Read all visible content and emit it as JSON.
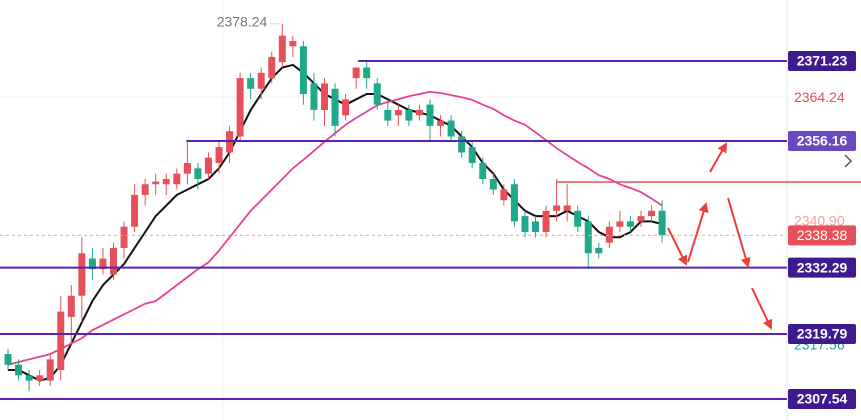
{
  "chart_data": {
    "type": "candlestick",
    "up_color": "#e5505a",
    "down_color": "#1fa88a",
    "open": [
      2316,
      2314,
      2312,
      2311,
      2311,
      2313,
      2323,
      2327,
      2334,
      2332,
      2331,
      2336,
      2340,
      2346,
      2348,
      2348,
      2348,
      2350,
      2351,
      2350,
      2352,
      2354,
      2357,
      2368,
      2366,
      2368,
      2371,
      2374,
      2374,
      2367,
      2362,
      2366,
      2361,
      2368,
      2370,
      2367,
      2362,
      2361,
      2362,
      2361,
      2363,
      2359,
      2360,
      2357,
      2355,
      2352,
      2349,
      2345,
      2348,
      2342,
      2341,
      2339,
      2343,
      2343,
      2343,
      2341,
      2336,
      2337,
      2340,
      2341,
      2341,
      2342,
      2343
    ],
    "high": [
      2317,
      2315,
      2313,
      2313,
      2316,
      2327,
      2329,
      2338,
      2336,
      2336,
      2337,
      2341,
      2348,
      2349,
      2350,
      2350,
      2351,
      2356,
      2352,
      2354,
      2356,
      2359,
      2369,
      2369,
      2370,
      2373,
      2378.24,
      2376,
      2375,
      2369,
      2368,
      2367,
      2365,
      2370,
      2371,
      2368,
      2364,
      2363,
      2363,
      2363,
      2364,
      2361,
      2361,
      2358,
      2356,
      2353,
      2350,
      2348,
      2349,
      2343,
      2342,
      2344,
      2349,
      2348,
      2344,
      2342,
      2337,
      2341,
      2343,
      2342,
      2343,
      2344,
      2345
    ],
    "low": [
      2313,
      2311,
      2309,
      2310,
      2310,
      2311,
      2318,
      2322,
      2330,
      2331,
      2330,
      2334,
      2339,
      2344,
      2346,
      2346,
      2347,
      2348,
      2347,
      2349,
      2350,
      2352,
      2356,
      2364,
      2364,
      2367,
      2370,
      2372,
      2363,
      2360,
      2359,
      2357,
      2360,
      2366,
      2366,
      2362,
      2359,
      2359,
      2359,
      2360,
      2356,
      2357,
      2356,
      2353,
      2351,
      2348,
      2346,
      2344,
      2340,
      2338,
      2338,
      2338,
      2341,
      2341,
      2339,
      2332,
      2334,
      2336,
      2339,
      2339,
      2340,
      2341,
      2337
    ],
    "close": [
      2314,
      2312,
      2311,
      2312,
      2315,
      2324,
      2327,
      2335,
      2332,
      2334,
      2336,
      2340,
      2346,
      2348,
      2348.5,
      2349,
      2350,
      2352,
      2349,
      2353,
      2355,
      2358,
      2368,
      2366,
      2369,
      2372,
      2376,
      2375,
      2365,
      2362,
      2367,
      2359,
      2364,
      2370,
      2368,
      2363,
      2360,
      2362,
      2360,
      2362,
      2359,
      2360,
      2357,
      2354,
      2352,
      2349,
      2347,
      2347,
      2341,
      2339,
      2339,
      2343,
      2344,
      2344,
      2340,
      2335,
      2335,
      2340,
      2341,
      2340,
      2342,
      2343,
      2338.38
    ],
    "ma": [
      {
        "color": "#111111",
        "values": [
          2313,
          2313,
          2312,
          2311,
          2311.5,
          2314,
          2318,
          2322,
          2326,
          2329,
          2331,
          2333,
          2336,
          2339,
          2342,
          2344,
          2346,
          2347,
          2348,
          2349,
          2351,
          2354,
          2358,
          2362,
          2365,
          2368,
          2370,
          2370.5,
          2369,
          2367,
          2365,
          2364,
          2363,
          2364,
          2365,
          2365,
          2364,
          2363,
          2362,
          2361.5,
          2361,
          2360,
          2359,
          2357,
          2355,
          2352,
          2350,
          2347,
          2345,
          2343,
          2342,
          2342,
          2342,
          2343,
          2342,
          2341,
          2339,
          2338,
          2338,
          2339,
          2341,
          2341,
          2340.5
        ]
      },
      {
        "color": "#e8409a",
        "values": [
          2314,
          2314.5,
          2315,
          2315.5,
          2316,
          2317,
          2318,
          2319,
          2320.5,
          2321.5,
          2322.5,
          2323.5,
          2324.5,
          2325.5,
          2326,
          2327.5,
          2329,
          2330.5,
          2332,
          2333.3,
          2335.5,
          2338,
          2340.5,
          2343,
          2345,
          2347,
          2349,
          2351,
          2352.6,
          2354.3,
          2356,
          2357.6,
          2359.2,
          2360.5,
          2361.7,
          2362.9,
          2363.5,
          2364,
          2364.6,
          2365,
          2365.4,
          2365.2,
          2364.8,
          2364.4,
          2363.9,
          2363,
          2362.2,
          2361,
          2360,
          2359.2,
          2357.8,
          2356.3,
          2354.8,
          2353.5,
          2352.2,
          2351,
          2349.7,
          2349,
          2348,
          2347.3,
          2346.5,
          2345.3,
          2344
        ]
      }
    ],
    "ylim": [
      2303.58,
      2382.72
    ],
    "yticks": [
      2317.56,
      {
        "value": 2340.9,
        "label": "2340.90"
      },
      2364.24
    ],
    "ytick_colors": [
      "#2aa198",
      "#f0a0a4",
      "#e5505a"
    ],
    "levels": [
      2371.23,
      2356.16,
      2332.29,
      2319.79,
      2307.54
    ],
    "level_color": "#5a22b0",
    "resistance": 2348.43,
    "resistance_color": "#e5505a"
  }
}
